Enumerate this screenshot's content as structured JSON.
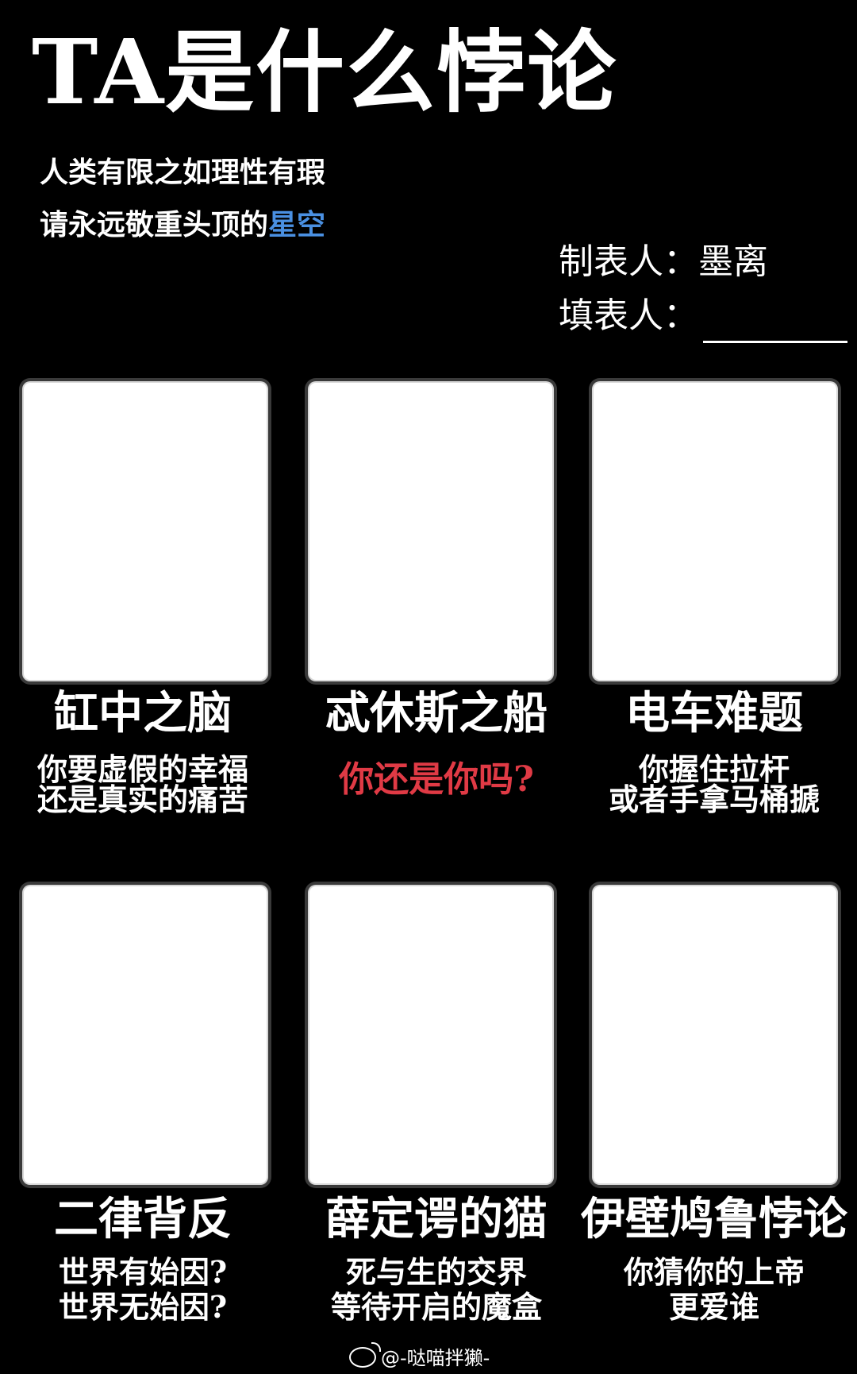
{
  "header": {
    "title": "TA是什么悖论",
    "subtitle_line1": "人类有限之如理性有瑕",
    "subtitle_line2_prefix": "请永远敬重头顶的",
    "subtitle_line2_highlight": "星空",
    "maker_label": "制表人：",
    "maker_name": "墨离",
    "filler_label": "填表人："
  },
  "cards": [
    {
      "title": "缸中之脑",
      "desc_line1": "你要虚假的幸福",
      "desc_line2": "还是真实的痛苦"
    },
    {
      "title": "忒休斯之船",
      "desc_line1": "你还是你吗?",
      "desc_line2": ""
    },
    {
      "title": "电车难题",
      "desc_line1": "你握住拉杆",
      "desc_line2": "或者手拿马桶搋"
    },
    {
      "title": "二律背反",
      "desc_line1": "世界有始因?",
      "desc_line2": "世界无始因?"
    },
    {
      "title": "薛定谔的猫",
      "desc_line1": "死与生的交界",
      "desc_line2": "等待开启的魔盒"
    },
    {
      "title": "伊壁鸠鲁悖论",
      "desc_line1": "你猜你的上帝",
      "desc_line2": "更爱谁"
    }
  ],
  "watermark": {
    "text": "@-哒喵拌獭-",
    "icon": "weibo-icon"
  },
  "colors": {
    "background": "#000000",
    "accent_blue": "#4a90e2",
    "accent_red": "#e03a45",
    "card": "#ffffff"
  }
}
